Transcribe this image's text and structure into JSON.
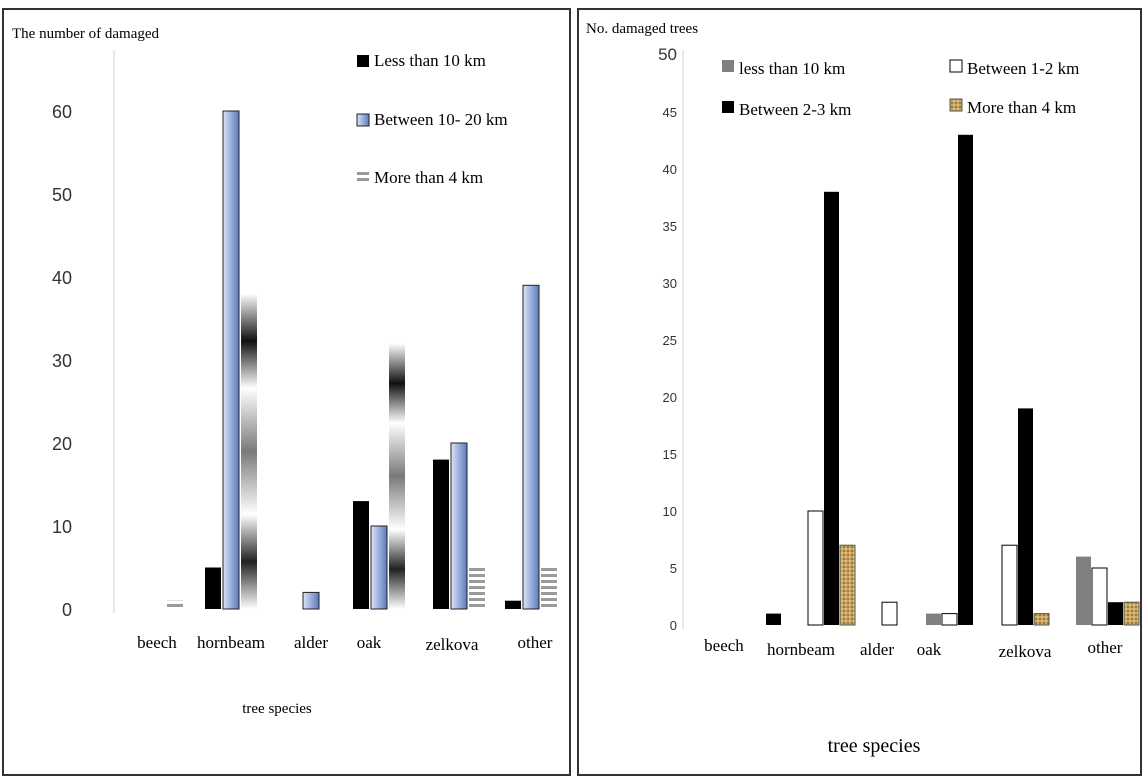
{
  "colors": {
    "black": "#000000",
    "blue_light": "#dce6f7",
    "blue_dark": "#5b79bf",
    "gray": "#808080",
    "white": "#ffffff",
    "tan": "#c9a45e",
    "stripe_gray": "#9a9a9a"
  },
  "chart_data": [
    {
      "type": "bar",
      "title": "The number of damaged",
      "xlabel": "tree species",
      "ylabel": "The number of damaged",
      "categories": [
        "beech",
        "hornbeam",
        "alder",
        "oak",
        "zelkova",
        "other"
      ],
      "yticks": [
        "0",
        "10",
        "20",
        "30",
        "40",
        "50",
        "60"
      ],
      "ylim": [
        0,
        60
      ],
      "grid": false,
      "legend_position": "top-right",
      "series": [
        {
          "name": "Less than 10 km",
          "values": [
            0,
            5,
            0,
            13,
            18,
            1
          ]
        },
        {
          "name": "Between 10- 20 km",
          "values": [
            0,
            60,
            2,
            10,
            20,
            39
          ]
        },
        {
          "name": "More than 4 km",
          "values": [
            1,
            38,
            0,
            32,
            5,
            5
          ]
        }
      ]
    },
    {
      "type": "bar",
      "title": "No. damaged trees",
      "xlabel": "tree species",
      "ylabel": "No. damaged trees",
      "categories": [
        "beech",
        "hornbeam",
        "alder",
        "oak",
        "zelkova",
        "other"
      ],
      "yticks": [
        "0",
        "5",
        "10",
        "15",
        "20",
        "25",
        "30",
        "35",
        "40",
        "45",
        "50"
      ],
      "ylim": [
        0,
        50
      ],
      "grid": false,
      "legend_position": "top-right",
      "series": [
        {
          "name": "less than 10 km",
          "values": [
            0,
            0,
            0,
            1,
            0,
            6
          ]
        },
        {
          "name": "Between 1-2 km",
          "values": [
            0,
            10,
            2,
            1,
            7,
            5
          ]
        },
        {
          "name": "Between 2-3 km",
          "values": [
            1,
            38,
            0,
            43,
            19,
            2
          ]
        },
        {
          "name": "More than 4 km",
          "values": [
            0,
            7,
            0,
            0,
            1,
            2
          ]
        }
      ]
    }
  ]
}
